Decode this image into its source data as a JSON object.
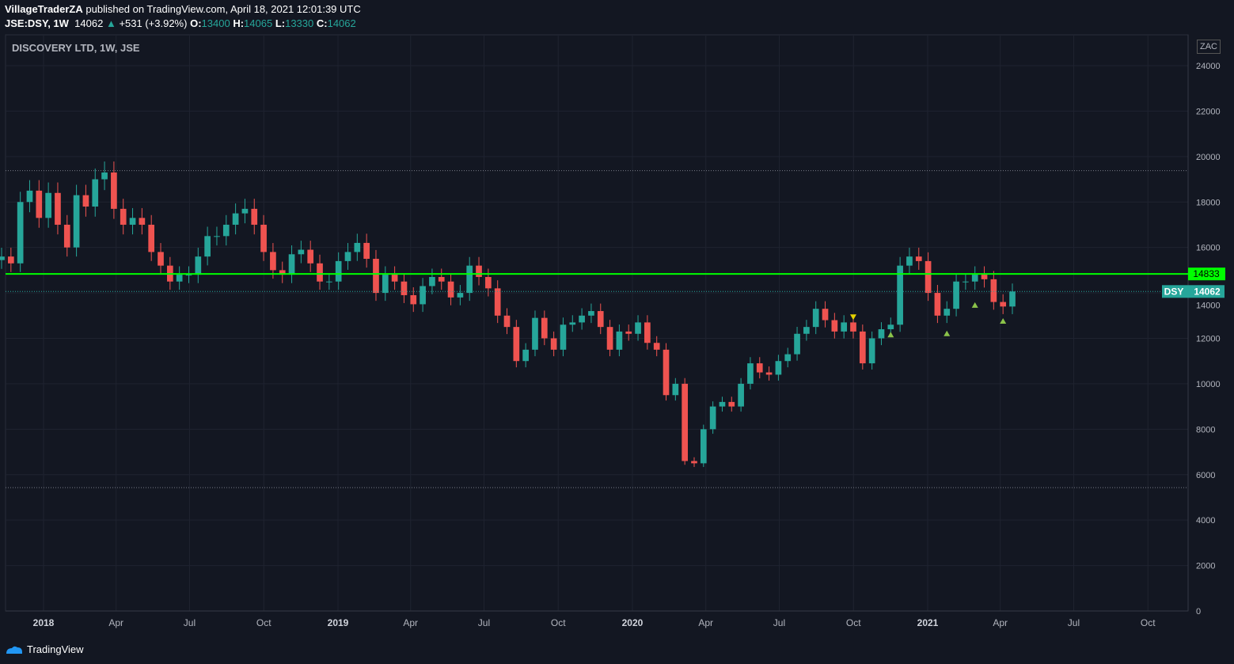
{
  "header": {
    "author": "VillageTraderZA",
    "published": "published on TradingView.com, April 18, 2021 12:01:39 UTC",
    "symbol": "JSE:DSY, 1W",
    "last": "14062",
    "change": "+531 (+3.92%)",
    "o_label": "O:",
    "o": "13400",
    "h_label": "H:",
    "h": "14065",
    "l_label": "L:",
    "l": "13330",
    "c_label": "C:",
    "c": "14062"
  },
  "chart_title": "DISCOVERY LTD, 1W, JSE",
  "currency": "ZAC",
  "brand": "TradingView",
  "colors": {
    "up": "#26a69a",
    "down": "#ef5350",
    "level": "#00ff00",
    "bg": "#131722"
  },
  "chart_data": {
    "type": "candlestick",
    "start": "2017-11-10",
    "end": "2021-04-16",
    "closes": [
      15600,
      15300,
      18000,
      18500,
      17300,
      18400,
      17000,
      16000,
      18300,
      17800,
      19000,
      19300,
      17700,
      17000,
      17300,
      17000,
      15800,
      15200,
      14500,
      14800,
      14800,
      15600,
      16500,
      16500,
      17000,
      17500,
      17700,
      17000,
      15800,
      15000,
      14800,
      15700,
      15900,
      15300,
      14500,
      14500,
      15400,
      15800,
      16200,
      15500,
      14000,
      14800,
      14500,
      13900,
      13500,
      14300,
      14700,
      14500,
      13800,
      14000,
      15200,
      14700,
      14200,
      13000,
      12500,
      11000,
      11500,
      12900,
      12000,
      11500,
      12600,
      12700,
      13000,
      13200,
      12500,
      11500,
      12300,
      12200,
      12700,
      11800,
      11500,
      9500,
      10000,
      6600,
      6500,
      8000,
      9000,
      9200,
      9000,
      10000,
      10900,
      10500,
      10400,
      11000,
      11300,
      12200,
      12500,
      13300,
      12800,
      12300,
      12700,
      12300,
      10900,
      12000,
      12400,
      12600,
      15200,
      15600,
      15400,
      14000,
      13000,
      13300,
      14500,
      14500,
      14800,
      14600,
      13600,
      13400,
      14062
    ],
    "yaxis": {
      "min": 0,
      "max": 24000,
      "ticks": [
        0,
        2000,
        4000,
        6000,
        8000,
        10000,
        12000,
        14000,
        16000,
        18000,
        20000,
        22000,
        24000
      ]
    },
    "xaxis": {
      "ticks": [
        {
          "label": "2018",
          "date": "2018-01-01",
          "bold": true
        },
        {
          "label": "Apr",
          "date": "2018-04-01"
        },
        {
          "label": "Jul",
          "date": "2018-07-01"
        },
        {
          "label": "Oct",
          "date": "2018-10-01"
        },
        {
          "label": "2019",
          "date": "2019-01-01",
          "bold": true
        },
        {
          "label": "Apr",
          "date": "2019-04-01"
        },
        {
          "label": "Jul",
          "date": "2019-07-01"
        },
        {
          "label": "Oct",
          "date": "2019-10-01"
        },
        {
          "label": "2020",
          "date": "2020-01-01",
          "bold": true
        },
        {
          "label": "Apr",
          "date": "2020-04-01"
        },
        {
          "label": "Jul",
          "date": "2020-07-01"
        },
        {
          "label": "Oct",
          "date": "2020-10-01"
        },
        {
          "label": "2021",
          "date": "2021-01-01",
          "bold": true
        },
        {
          "label": "Apr",
          "date": "2021-04-01"
        },
        {
          "label": "Jul",
          "date": "2021-07-01"
        },
        {
          "label": "Oct",
          "date": "2021-10-01"
        }
      ]
    },
    "levels": [
      {
        "price": 14833,
        "label": "14833",
        "style": "solid"
      },
      {
        "price": 19380,
        "style": "dotted"
      },
      {
        "price": 5430,
        "style": "dotted"
      },
      {
        "price": 14062,
        "label": "14062",
        "tag": "DSY",
        "style": "dotted-teal"
      }
    ],
    "markers": [
      {
        "index": 91,
        "dir": "down",
        "price": 12950,
        "color": "#e6d200"
      },
      {
        "index": 95,
        "dir": "up",
        "price": 12150,
        "color": "#8bc34a"
      },
      {
        "index": 101,
        "dir": "up",
        "price": 12200,
        "color": "#8bc34a"
      },
      {
        "index": 104,
        "dir": "up",
        "price": 13450,
        "color": "#8bc34a"
      },
      {
        "index": 107,
        "dir": "up",
        "price": 12750,
        "color": "#8bc34a"
      }
    ]
  }
}
